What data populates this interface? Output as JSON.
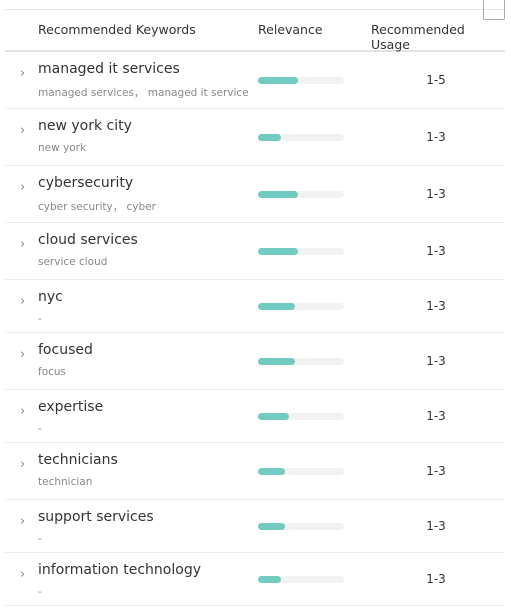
{
  "table": {
    "header": [
      "Recommended Keywords",
      "Relevance",
      "Recommended Usage"
    ],
    "rows": [
      {
        "keyword": "managed it services",
        "synonyms": "managed services， managed it service",
        "relevance": 0.47,
        "usage": "1-5"
      },
      {
        "keyword": "new york city",
        "synonyms": "new york",
        "relevance": 0.27,
        "usage": "1-3"
      },
      {
        "keyword": "cybersecurity",
        "synonyms": "cyber security， cyber",
        "relevance": 0.47,
        "usage": "1-3"
      },
      {
        "keyword": "cloud services",
        "synonyms": "service cloud",
        "relevance": 0.47,
        "usage": "1-3"
      },
      {
        "keyword": "nyc",
        "synonyms": "-",
        "relevance": 0.43,
        "usage": "1-3"
      },
      {
        "keyword": "focused",
        "synonyms": "focus",
        "relevance": 0.43,
        "usage": "1-3"
      },
      {
        "keyword": "expertise",
        "synonyms": "-",
        "relevance": 0.36,
        "usage": "1-3"
      },
      {
        "keyword": "technicians",
        "synonyms": "technician",
        "relevance": 0.31,
        "usage": "1-3"
      },
      {
        "keyword": "support services",
        "synonyms": "-",
        "relevance": 0.31,
        "usage": "1-3"
      },
      {
        "keyword": "information technology",
        "synonyms": "-",
        "relevance": 0.27,
        "usage": "1-3"
      }
    ]
  }
}
